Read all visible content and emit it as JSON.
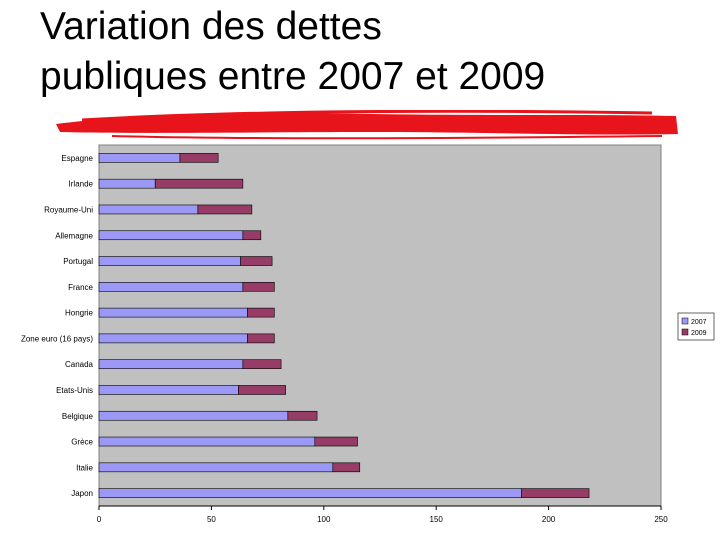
{
  "slide": {
    "title_line1": "Variation des dettes",
    "title_line2": "publiques entre 2007 et 2009"
  },
  "colors": {
    "bar_2007": "#9b99f5",
    "bar_2009": "#963c67",
    "plot_background": "#c0c0c0",
    "red_stroke": "#e8141c"
  },
  "chart_data": {
    "type": "bar",
    "orientation": "horizontal",
    "stacked": true,
    "categories": [
      "Espagne",
      "Irlande",
      "Royaume-Uni",
      "Allemagne",
      "Portugal",
      "France",
      "Hongrie",
      "Zone euro (16 pays)",
      "Canada",
      "Etats-Unis",
      "Belgique",
      "Grèce",
      "Italie",
      "Japon"
    ],
    "series": [
      {
        "name": "2007",
        "values": [
          36,
          25,
          44,
          64,
          63,
          64,
          66,
          66,
          64,
          62,
          84,
          96,
          104,
          188
        ]
      },
      {
        "name": "2009",
        "values": [
          17,
          39,
          24,
          8,
          14,
          14,
          12,
          12,
          17,
          21,
          13,
          19,
          12,
          30
        ]
      }
    ],
    "xlim": [
      0,
      250
    ],
    "xticks": [
      0,
      50,
      100,
      150,
      200,
      250
    ],
    "grid": false,
    "legend_position": "right"
  }
}
